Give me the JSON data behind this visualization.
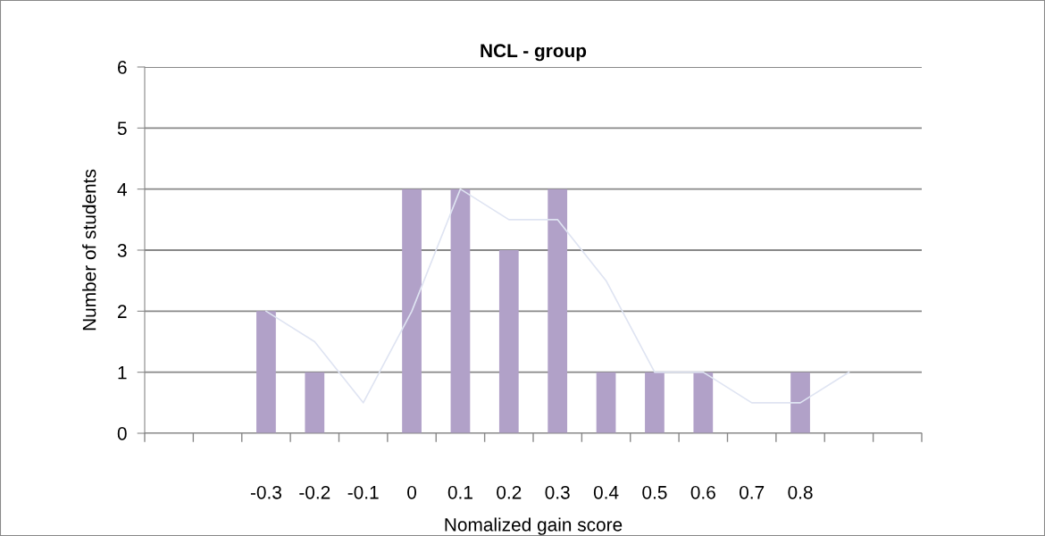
{
  "chart_data": {
    "type": "bar",
    "title": "NCL - group",
    "xlabel": "Nomalized gain score",
    "ylabel": "Number of students",
    "categories": [
      null,
      null,
      "-0.3",
      "-0.2",
      "-0.1",
      "0",
      "0.1",
      "0.2",
      "0.3",
      "0.4",
      "0.5",
      "0.6",
      "0.7",
      "0.8",
      null,
      null
    ],
    "series": [
      {
        "color": "#b1a1c8",
        "values": [
          null,
          null,
          2,
          1,
          0,
          4,
          4,
          3,
          4,
          1,
          1,
          1,
          0,
          1,
          null,
          null
        ]
      },
      {
        "type": "line",
        "color": "#dfe4f2",
        "values": [
          null,
          null,
          2,
          1.5,
          0.5,
          2,
          4,
          3.5,
          3.5,
          2.5,
          1,
          1,
          0.5,
          0.5,
          1,
          null
        ]
      }
    ],
    "ylim": [
      0,
      6
    ],
    "yticks": [
      0,
      1,
      2,
      3,
      4,
      5,
      6
    ],
    "grid": "y",
    "legend": false,
    "marker": "none"
  }
}
